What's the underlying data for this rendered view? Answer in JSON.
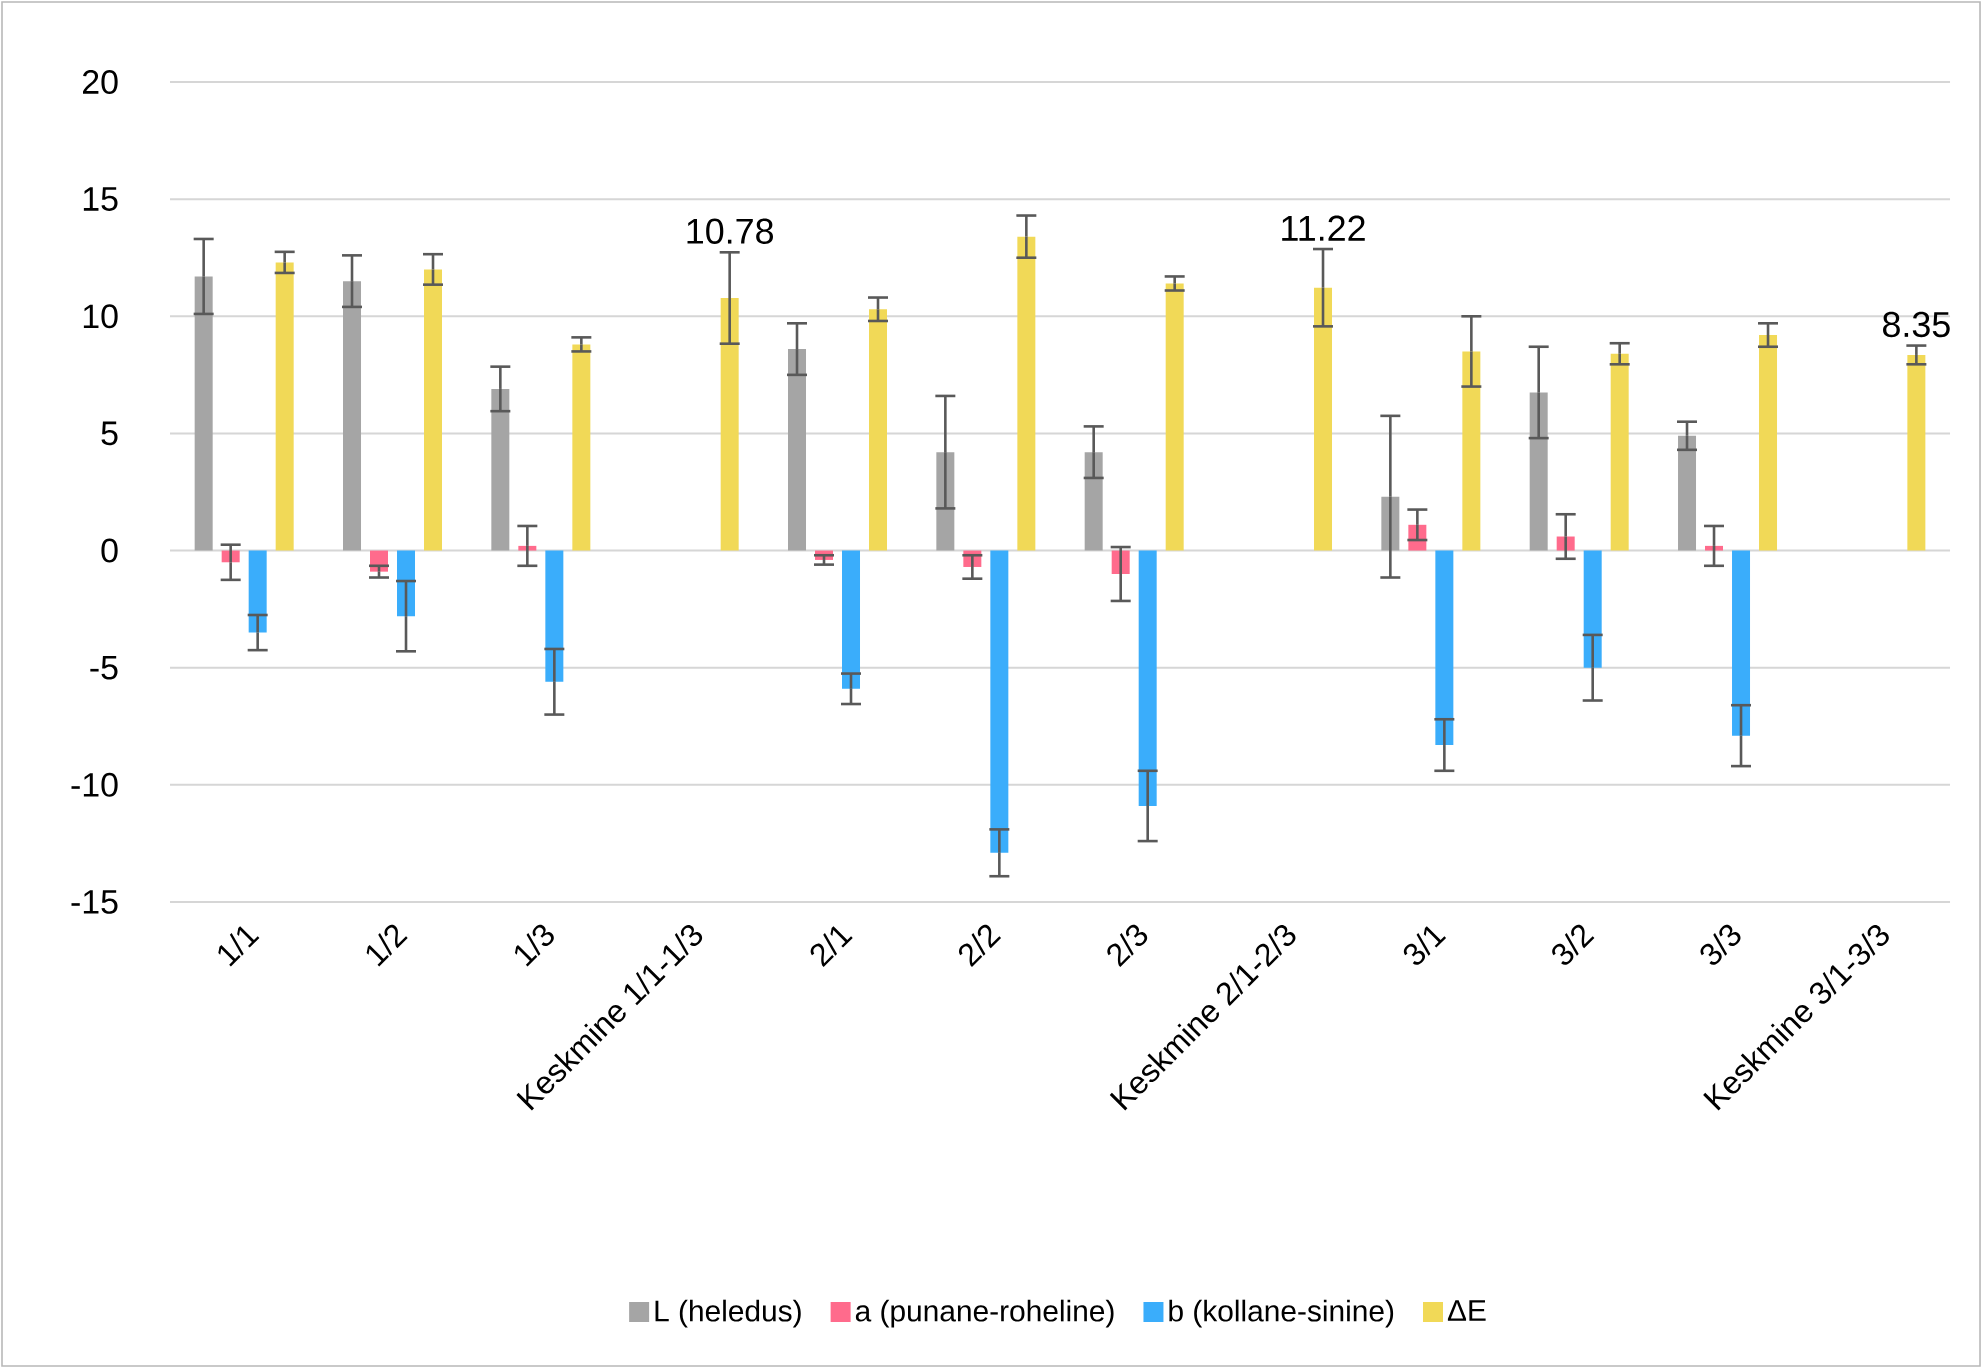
{
  "chart_data": {
    "type": "bar",
    "categories": [
      "1/1",
      "1/2",
      "1/3",
      "Keskmine 1/1-1/3",
      "2/1",
      "2/2",
      "2/3",
      "Keskmine 2/1-2/3",
      "3/1",
      "3/2",
      "3/3",
      "Keskmine 3/1-3/3"
    ],
    "series": [
      {
        "name": "L (heledus)",
        "color": "#a5a5a5",
        "values": [
          11.7,
          11.5,
          6.9,
          null,
          8.6,
          4.2,
          4.2,
          null,
          2.3,
          6.75,
          4.9,
          null
        ],
        "errors": [
          1.6,
          1.1,
          0.95,
          null,
          1.1,
          2.4,
          1.1,
          null,
          3.45,
          1.95,
          0.6,
          null
        ]
      },
      {
        "name": "a (punane-roheline)",
        "color": "#ff6b8c",
        "values": [
          -0.5,
          -0.9,
          0.2,
          null,
          -0.4,
          -0.7,
          -1.0,
          null,
          1.1,
          0.6,
          0.2,
          null
        ],
        "errors": [
          0.75,
          0.25,
          0.85,
          null,
          0.2,
          0.5,
          1.15,
          null,
          0.65,
          0.95,
          0.85,
          null
        ]
      },
      {
        "name": "b (kollane-sinine)",
        "color": "#3aadfb",
        "values": [
          -3.5,
          -2.8,
          -5.6,
          null,
          -5.9,
          -12.9,
          -10.9,
          null,
          -8.3,
          -5.0,
          -7.9,
          null
        ],
        "errors": [
          0.75,
          1.5,
          1.4,
          null,
          0.65,
          1.0,
          1.5,
          null,
          1.1,
          1.4,
          1.3,
          null
        ]
      },
      {
        "name": "ΔE",
        "color": "#f1d957",
        "values": [
          12.3,
          12.0,
          8.8,
          10.78,
          10.3,
          13.4,
          11.4,
          11.22,
          8.5,
          8.4,
          9.2,
          8.35
        ],
        "errors": [
          0.45,
          0.65,
          0.3,
          1.95,
          0.5,
          0.9,
          0.3,
          1.65,
          1.5,
          0.45,
          0.5,
          0.4
        ],
        "value_labels": [
          null,
          null,
          null,
          "10.78",
          null,
          null,
          null,
          "11.22",
          null,
          null,
          null,
          "8.35"
        ]
      }
    ],
    "ylim": [
      -15,
      20
    ],
    "yticks": [
      -15,
      -10,
      -5,
      0,
      5,
      10,
      15,
      20
    ],
    "grid": "y",
    "legend": "bottom"
  }
}
